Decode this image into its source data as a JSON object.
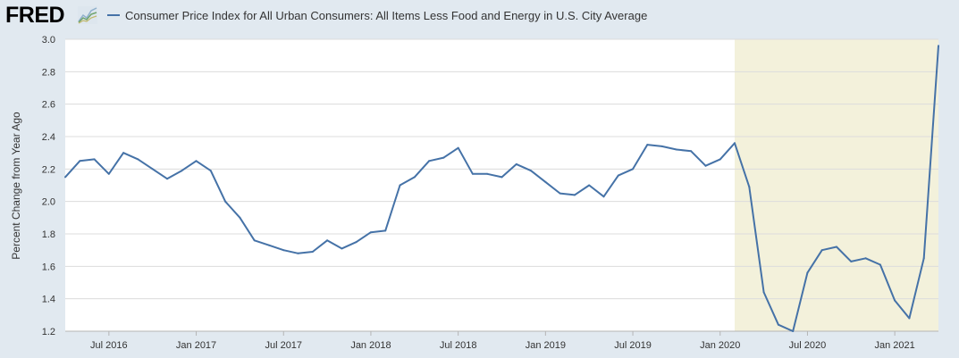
{
  "header": {
    "logo_text": "FRED",
    "logo_icon": "fred-line-graph-icon"
  },
  "chart_data": {
    "type": "line",
    "title": "",
    "xlabel": "",
    "ylabel": "Percent Change from Year Ago",
    "ylim": [
      1.2,
      3.0
    ],
    "y_ticks": [
      "1.2",
      "1.4",
      "1.6",
      "1.8",
      "2.0",
      "2.2",
      "2.4",
      "2.6",
      "2.8",
      "3.0"
    ],
    "y_tick_values": [
      1.2,
      1.4,
      1.6,
      1.8,
      2.0,
      2.2,
      2.4,
      2.6,
      2.8,
      3.0
    ],
    "x_range": [
      "2016-04",
      "2021-04"
    ],
    "x_ticks": [
      {
        "label": "Jul 2016",
        "date": "2016-07"
      },
      {
        "label": "Jan 2017",
        "date": "2017-01"
      },
      {
        "label": "Jul 2017",
        "date": "2017-07"
      },
      {
        "label": "Jan 2018",
        "date": "2018-01"
      },
      {
        "label": "Jul 2018",
        "date": "2018-07"
      },
      {
        "label": "Jan 2019",
        "date": "2019-01"
      },
      {
        "label": "Jul 2019",
        "date": "2019-07"
      },
      {
        "label": "Jan 2020",
        "date": "2020-01"
      },
      {
        "label": "Jul 2020",
        "date": "2020-07"
      },
      {
        "label": "Jan 2021",
        "date": "2021-01"
      }
    ],
    "grid": "horizontal",
    "recession": {
      "start": "2020-02",
      "end": "2021-04",
      "color": "#f3f1db"
    },
    "series": [
      {
        "name": "Consumer Price Index for All Urban Consumers: All Items Less Food and Energy in U.S. City Average",
        "color": "#4572a7",
        "x": [
          "2016-04",
          "2016-05",
          "2016-06",
          "2016-07",
          "2016-08",
          "2016-09",
          "2016-10",
          "2016-11",
          "2016-12",
          "2017-01",
          "2017-02",
          "2017-03",
          "2017-04",
          "2017-05",
          "2017-06",
          "2017-07",
          "2017-08",
          "2017-09",
          "2017-10",
          "2017-11",
          "2017-12",
          "2018-01",
          "2018-02",
          "2018-03",
          "2018-04",
          "2018-05",
          "2018-06",
          "2018-07",
          "2018-08",
          "2018-09",
          "2018-10",
          "2018-11",
          "2018-12",
          "2019-01",
          "2019-02",
          "2019-03",
          "2019-04",
          "2019-05",
          "2019-06",
          "2019-07",
          "2019-08",
          "2019-09",
          "2019-10",
          "2019-11",
          "2019-12",
          "2020-01",
          "2020-02",
          "2020-03",
          "2020-04",
          "2020-05",
          "2020-06",
          "2020-07",
          "2020-08",
          "2020-09",
          "2020-10",
          "2020-11",
          "2020-12",
          "2021-01",
          "2021-02",
          "2021-03",
          "2021-04"
        ],
        "values": [
          2.15,
          2.25,
          2.26,
          2.17,
          2.3,
          2.26,
          2.2,
          2.14,
          2.19,
          2.25,
          2.19,
          2.0,
          1.9,
          1.76,
          1.73,
          1.7,
          1.68,
          1.69,
          1.76,
          1.71,
          1.75,
          1.81,
          1.82,
          2.1,
          2.15,
          2.25,
          2.27,
          2.33,
          2.17,
          2.17,
          2.15,
          2.23,
          2.19,
          2.12,
          2.05,
          2.04,
          2.1,
          2.03,
          2.16,
          2.2,
          2.35,
          2.34,
          2.32,
          2.31,
          2.22,
          2.26,
          2.36,
          2.09,
          1.44,
          1.24,
          1.2,
          1.56,
          1.7,
          1.72,
          1.63,
          1.65,
          1.61,
          1.39,
          1.28,
          1.65,
          2.96
        ]
      }
    ]
  }
}
